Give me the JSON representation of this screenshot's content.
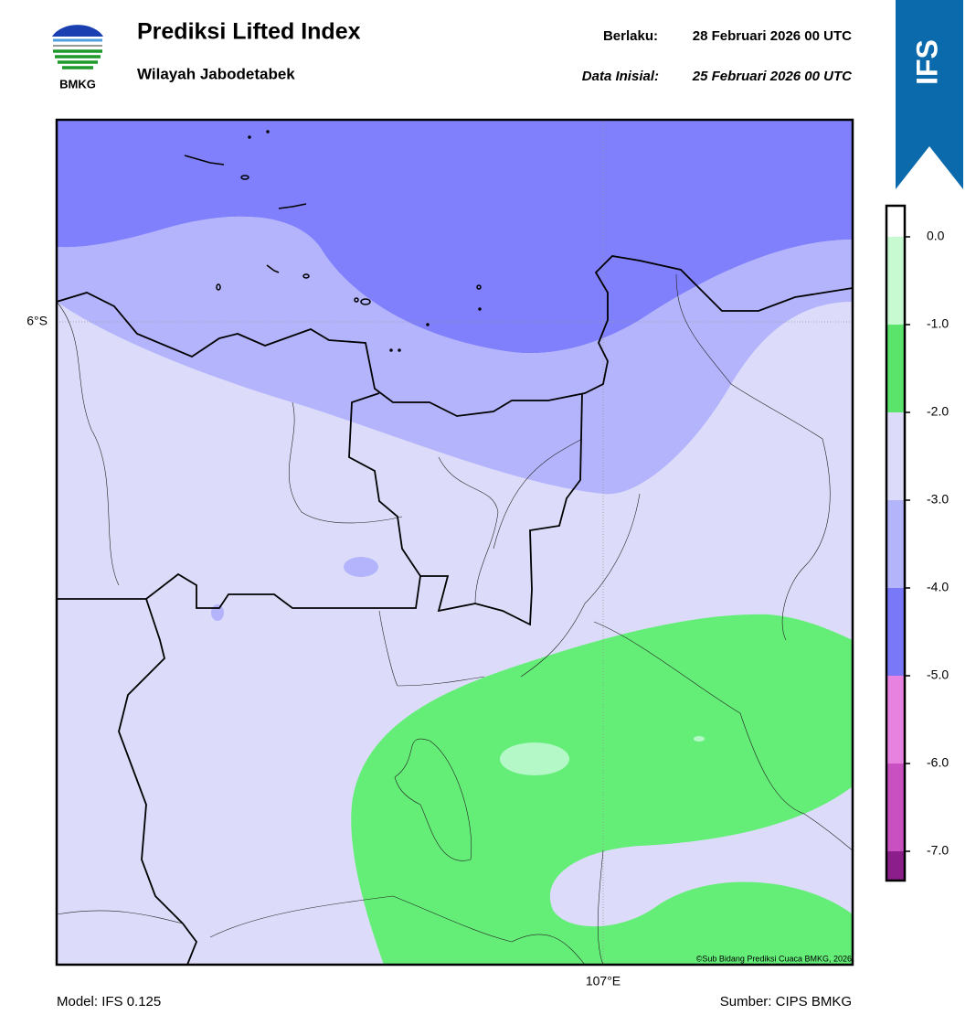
{
  "header": {
    "logo_text": "BMKG",
    "title": "Prediksi Lifted Index",
    "subtitle": "Wilayah Jabodetabek",
    "valid_label": "Berlaku:",
    "valid_date": "28 Februari 2026 00 UTC",
    "init_label": "Data Inisial:",
    "init_date": "25 Februari 2026 00 UTC",
    "badge": "IFS"
  },
  "map": {
    "lat_label": "6°S",
    "lon_label": "107°E",
    "credit": "©Sub Bidang Prediksi Cuaca BMKG, 2026"
  },
  "colorbar": {
    "ticks": [
      "0.0",
      "-1.0",
      "-2.0",
      "-3.0",
      "-4.0",
      "-5.0",
      "-6.0",
      "-7.0"
    ],
    "colors": [
      "#ffffff",
      "#c8fad2",
      "#5ae46c",
      "#dcdcfa",
      "#b4b4fa",
      "#7878f8",
      "#e882e0",
      "#c850c0",
      "#8c1e8c"
    ]
  },
  "footer": {
    "model": "Model: IFS 0.125",
    "source": "Sumber: CIPS BMKG"
  }
}
